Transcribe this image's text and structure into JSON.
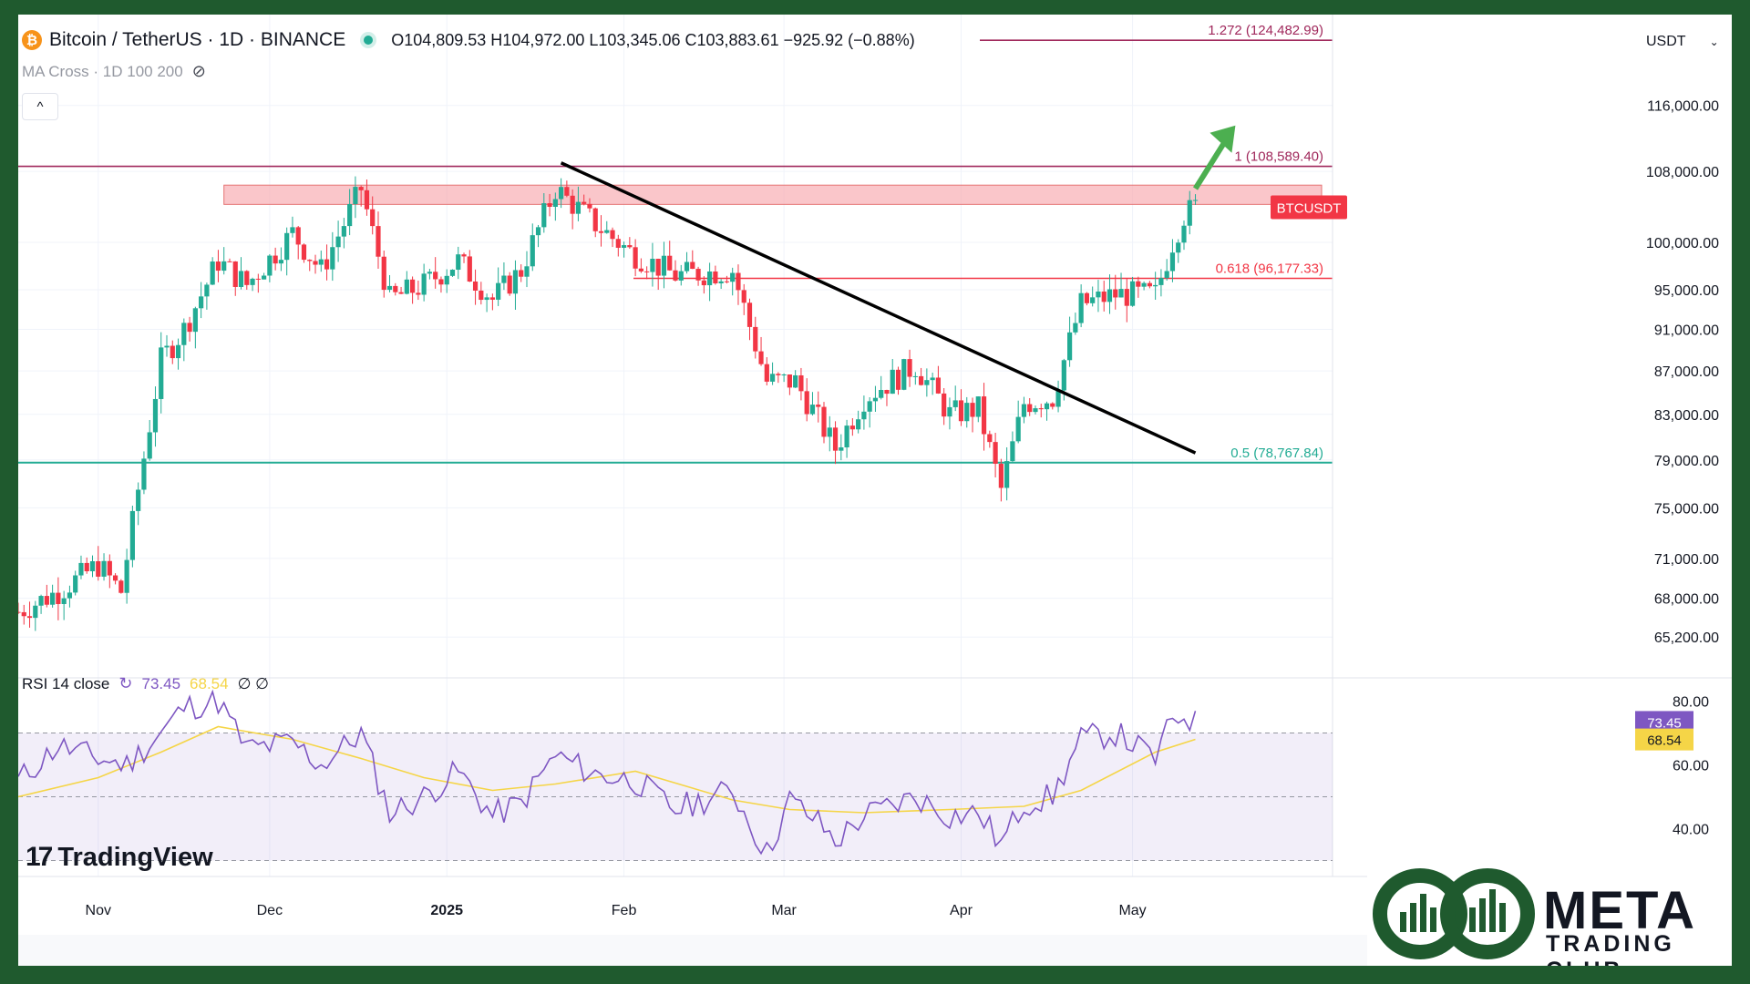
{
  "header": {
    "symbol_title": "Bitcoin / TetherUS · 1D · BINANCE",
    "ohlc": "O104,809.53  H104,972.00  L103,345.06  C103,883.61  −925.92 (−0.88%)",
    "indicator_label": "MA Cross · 1D 100 200",
    "currency": "USDT",
    "collapse_glyph": "^"
  },
  "rsi_header": {
    "label": "RSI 14 close",
    "value": "73.45",
    "ma_value": "68.54",
    "extra": "∅ ∅"
  },
  "branding": {
    "tradingview": "TradingView",
    "meta_word": "META",
    "meta_sub": "TRADING CLUB"
  },
  "colors": {
    "up": "#22ab94",
    "down": "#f23645",
    "fib1": "#a0295c",
    "fib618": "#f23645",
    "fib05": "#22ab94",
    "resistance_zone": "#f7a8ad",
    "rsi_line": "#7e57c2",
    "rsi_ma": "#f5d547",
    "trendline": "#000000",
    "arrow": "#4caf50"
  },
  "chart_data": {
    "type": "candlestick",
    "symbol": "BTCUSDT",
    "price_axis": {
      "ticks": [
        65200,
        68000,
        71000,
        75000,
        79000,
        83000,
        87000,
        91000,
        95000,
        100000,
        108000,
        116000
      ],
      "tick_labels": [
        "65,200.00",
        "68,000.00",
        "71,000.00",
        "75,000.00",
        "79,000.00",
        "83,000.00",
        "87,000.00",
        "91,000.00",
        "95,000.00",
        "100,000.00",
        "108,000.00",
        "116,000.00"
      ],
      "range": [
        63000,
        128000
      ],
      "scale": "log"
    },
    "date_axis": {
      "labels": [
        "Nov",
        "Dec",
        "2025",
        "Feb",
        "Mar",
        "Apr",
        "May"
      ],
      "dates": [
        "2024-11-01",
        "2024-12-01",
        "2025-01-01",
        "2025-02-01",
        "2025-03-01",
        "2025-04-01",
        "2025-05-01"
      ],
      "range": [
        "2024-10-18",
        "2025-06-05"
      ]
    },
    "series": [
      {
        "name": "BTCUSDT",
        "ohlc_source": "daily candles",
        "last_close": 103883.61
      }
    ],
    "closes_keyframes": {
      "dates": [
        "2024-10-18",
        "2024-10-25",
        "2024-11-01",
        "2024-11-05",
        "2024-11-08",
        "2024-11-12",
        "2024-11-16",
        "2024-11-22",
        "2024-11-27",
        "2024-12-05",
        "2024-12-10",
        "2024-12-17",
        "2024-12-22",
        "2024-12-28",
        "2025-01-03",
        "2025-01-09",
        "2025-01-14",
        "2025-01-20",
        "2025-01-27",
        "2025-02-02",
        "2025-02-10",
        "2025-02-20",
        "2025-02-26",
        "2025-03-03",
        "2025-03-10",
        "2025-03-15",
        "2025-03-24",
        "2025-03-30",
        "2025-04-04",
        "2025-04-08",
        "2025-04-12",
        "2025-04-17",
        "2025-04-22",
        "2025-04-28",
        "2025-05-05",
        "2025-05-08",
        "2025-05-10",
        "2025-05-12"
      ],
      "values": [
        67000,
        68500,
        70500,
        68500,
        76500,
        88000,
        91000,
        98000,
        95500,
        101000,
        97000,
        106000,
        94000,
        95500,
        98000,
        94000,
        97000,
        106000,
        102000,
        99000,
        96500,
        97000,
        86000,
        86000,
        80000,
        84500,
        87500,
        83000,
        83500,
        76500,
        84000,
        84500,
        93500,
        94500,
        94500,
        100000,
        103000,
        103883
      ]
    },
    "annotations": {
      "fib_levels": [
        {
          "label": "1.272 (124,482.99)",
          "value": 124482.99
        },
        {
          "label": "1 (108,589.40)",
          "value": 108589.4
        },
        {
          "label": "0.618 (96,177.33)",
          "value": 96177.33
        },
        {
          "label": "0.5 (78,767.84)",
          "value": 78767.84
        }
      ],
      "resistance_zone": {
        "from": 104200,
        "to": 106400,
        "start_date": "2024-11-23"
      },
      "price_tag": {
        "label": "BTCUSDT"
      },
      "trendline": {
        "from": {
          "date": "2025-01-21",
          "value": 109000
        },
        "to": {
          "date": "2025-05-12",
          "value": 79600
        }
      },
      "arrow": {
        "from": {
          "date": "2025-05-12",
          "value": 106000
        },
        "to": {
          "date": "2025-05-19",
          "value": 113500
        }
      }
    },
    "rsi": {
      "name": "RSI 14 close",
      "range": [
        25,
        85
      ],
      "ticks": [
        40,
        60,
        80
      ],
      "tick_labels": [
        "40.00",
        "60.00",
        "80.00"
      ],
      "bands": [
        30,
        50,
        70
      ],
      "last_value": 73.45,
      "ma_last": 68.54,
      "keyframes": {
        "dates": [
          "2024-10-18",
          "2024-10-25",
          "2024-11-01",
          "2024-11-06",
          "2024-11-12",
          "2024-11-16",
          "2024-11-22",
          "2024-11-27",
          "2024-12-05",
          "2024-12-10",
          "2024-12-17",
          "2024-12-22",
          "2024-12-28",
          "2025-01-03",
          "2025-01-09",
          "2025-01-14",
          "2025-01-20",
          "2025-01-27",
          "2025-02-03",
          "2025-02-10",
          "2025-02-20",
          "2025-02-26",
          "2025-03-02",
          "2025-03-07",
          "2025-03-10",
          "2025-03-15",
          "2025-03-24",
          "2025-03-30",
          "2025-04-04",
          "2025-04-08",
          "2025-04-12",
          "2025-04-17",
          "2025-04-22",
          "2025-04-28",
          "2025-05-05",
          "2025-05-08",
          "2025-05-10",
          "2025-05-12"
        ],
        "values": [
          55,
          66,
          62,
          60,
          70,
          78,
          80,
          65,
          67,
          60,
          70,
          45,
          50,
          58,
          44,
          48,
          63,
          57,
          55,
          46,
          52,
          32,
          49,
          42,
          36,
          44,
          50,
          44,
          45,
          35,
          48,
          50,
          68,
          70,
          62,
          74,
          76,
          73
        ]
      },
      "ma_keyframes": {
        "dates": [
          "2024-10-18",
          "2024-11-01",
          "2024-11-12",
          "2024-11-22",
          "2024-12-05",
          "2024-12-17",
          "2024-12-28",
          "2025-01-09",
          "2025-01-20",
          "2025-02-03",
          "2025-02-20",
          "2025-03-02",
          "2025-03-15",
          "2025-03-30",
          "2025-04-12",
          "2025-04-22",
          "2025-05-05",
          "2025-05-12"
        ],
        "values": [
          50,
          56,
          64,
          72,
          68,
          62,
          56,
          52,
          54,
          58,
          49,
          46,
          45,
          46,
          47,
          52,
          64,
          68
        ]
      }
    }
  }
}
